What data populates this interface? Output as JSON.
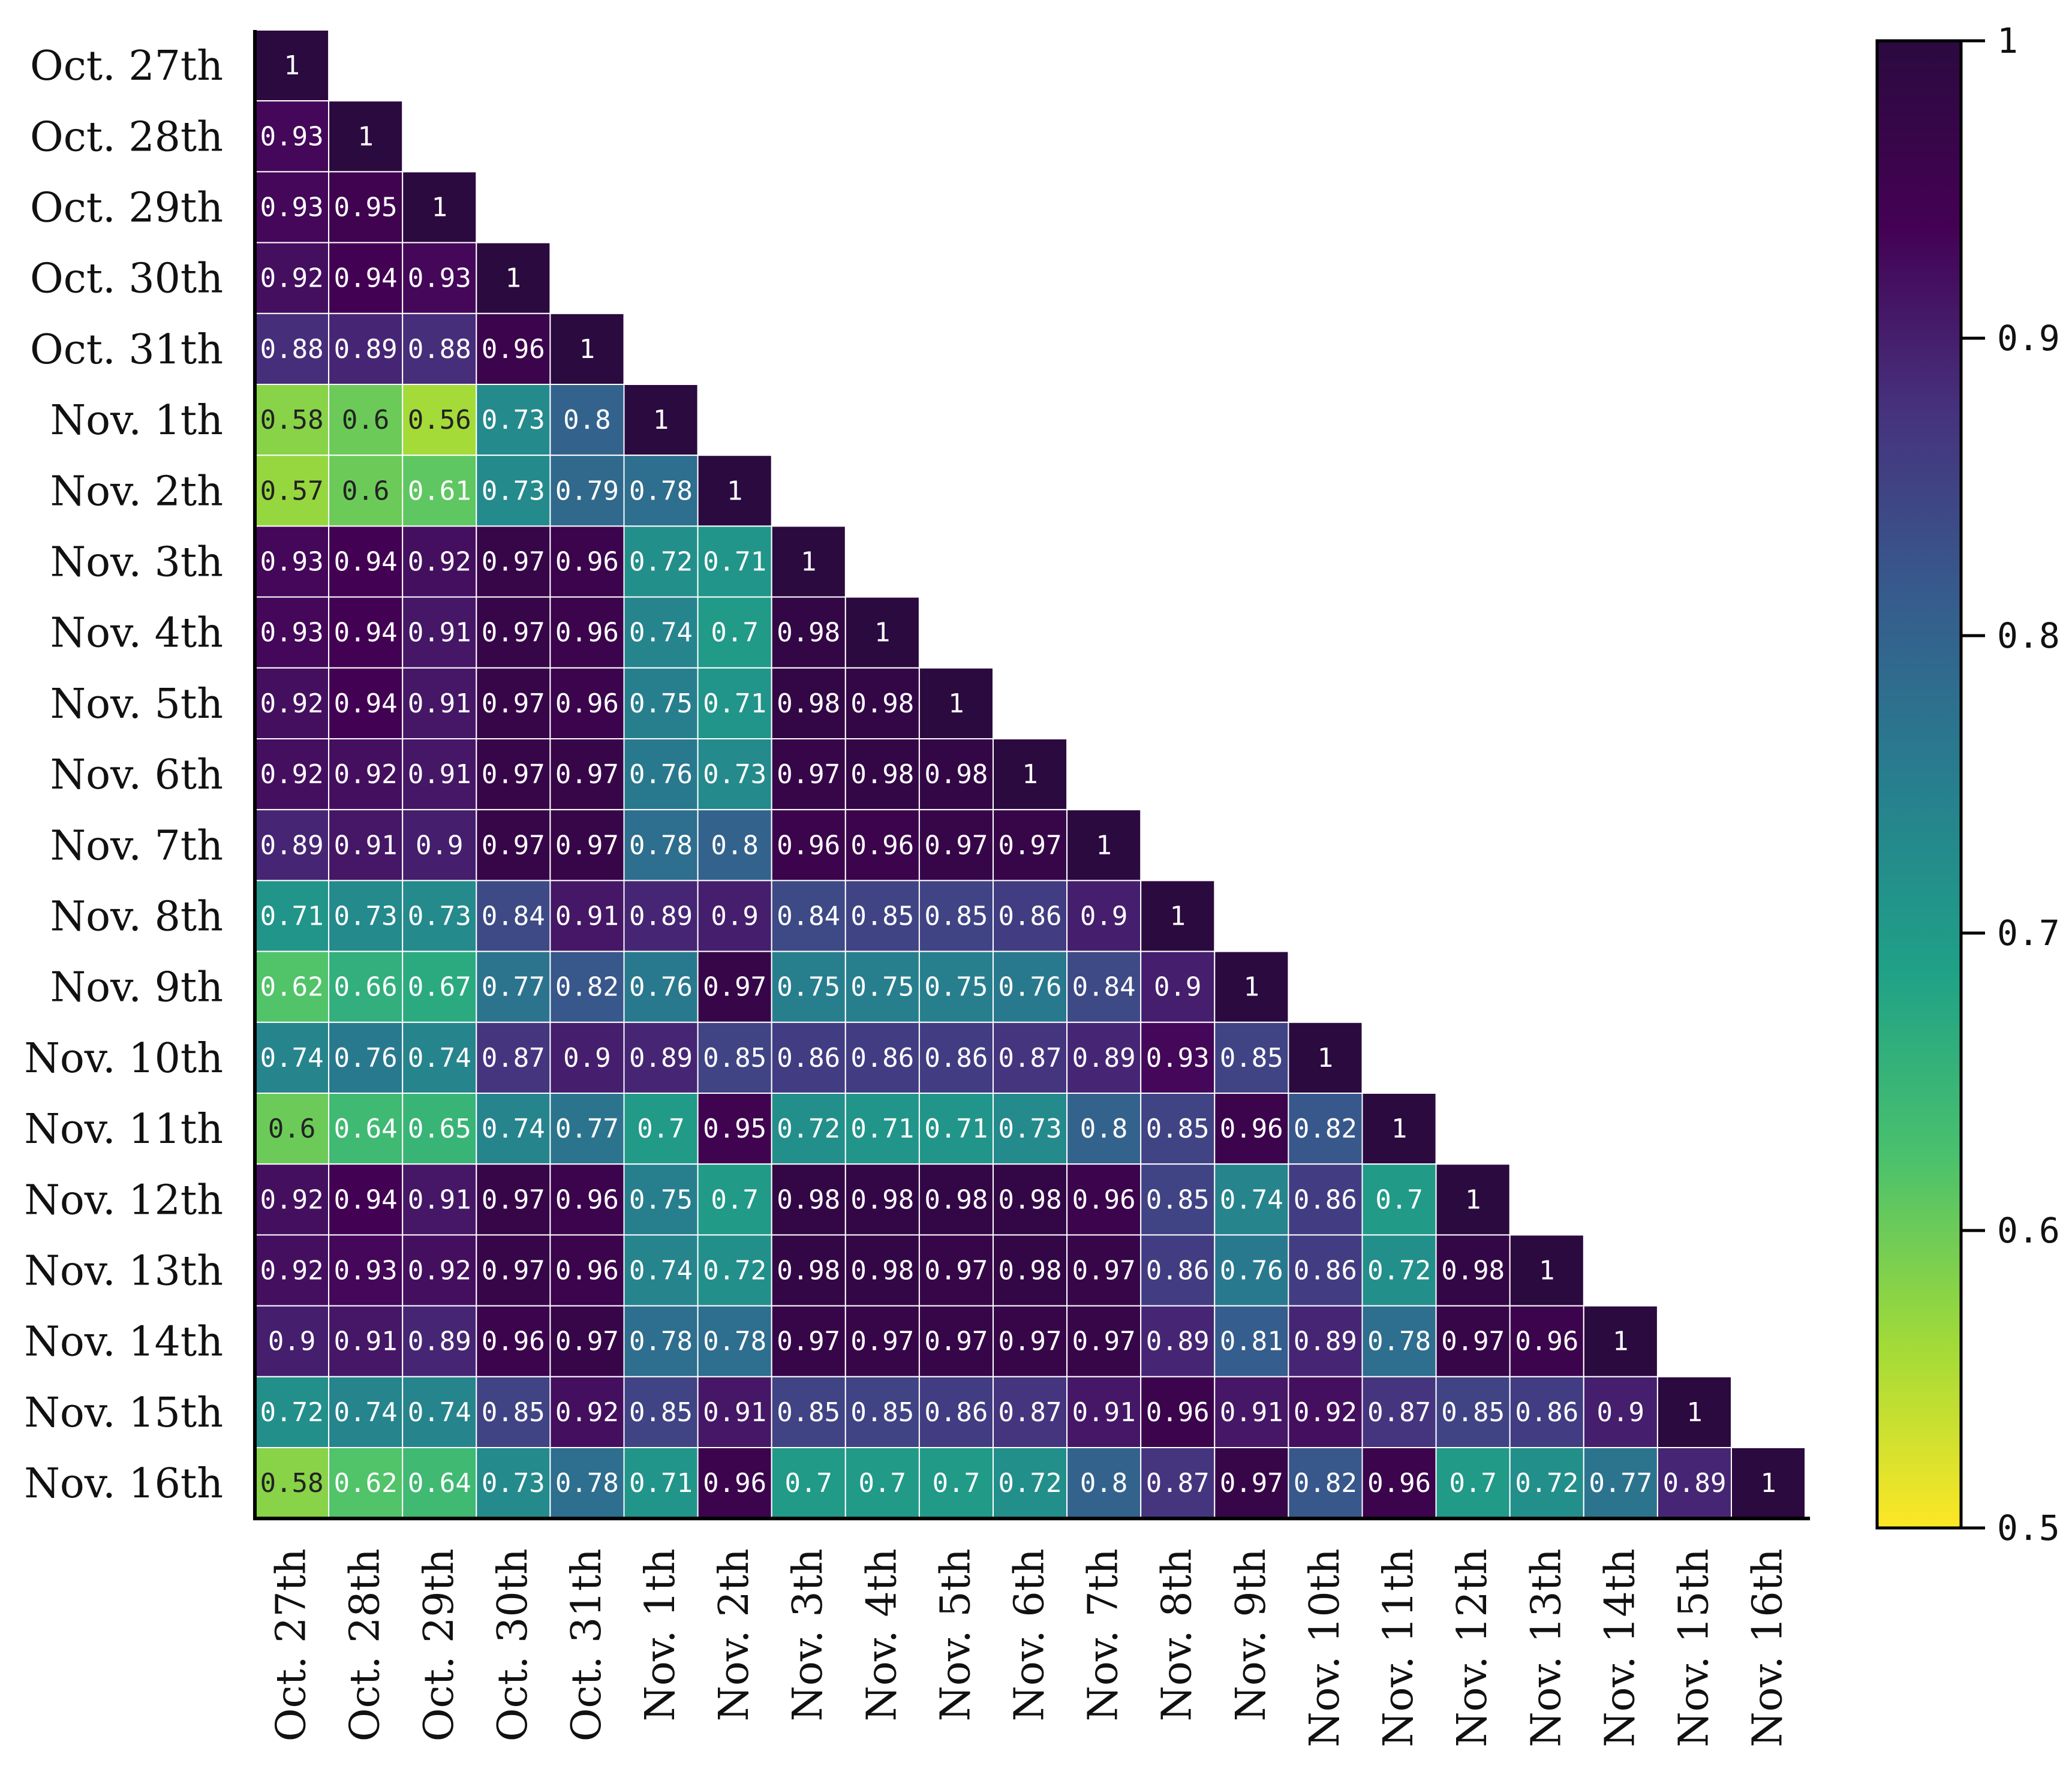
{
  "chart_data": {
    "type": "heatmap",
    "title": "",
    "xlabel": "",
    "ylabel": "",
    "triangle": "lower",
    "colormap": "viridis",
    "categories": [
      "Oct. 27th",
      "Oct. 28th",
      "Oct. 29th",
      "Oct. 30th",
      "Oct. 31th",
      "Nov. 1th",
      "Nov. 2th",
      "Nov. 3th",
      "Nov. 4th",
      "Nov. 5th",
      "Nov. 6th",
      "Nov. 7th",
      "Nov. 8th",
      "Nov. 9th",
      "Nov. 10th",
      "Nov. 11th",
      "Nov. 12th",
      "Nov. 13th",
      "Nov. 14th",
      "Nov. 15th",
      "Nov. 16th"
    ],
    "matrix": [
      [
        1
      ],
      [
        0.93,
        1
      ],
      [
        0.93,
        0.95,
        1
      ],
      [
        0.92,
        0.94,
        0.93,
        1
      ],
      [
        0.88,
        0.89,
        0.88,
        0.96,
        1
      ],
      [
        0.58,
        0.6,
        0.56,
        0.73,
        0.8,
        1
      ],
      [
        0.57,
        0.6,
        0.61,
        0.73,
        0.79,
        0.78,
        1
      ],
      [
        0.93,
        0.94,
        0.92,
        0.97,
        0.96,
        0.72,
        0.71,
        1
      ],
      [
        0.93,
        0.94,
        0.91,
        0.97,
        0.96,
        0.74,
        0.7,
        0.98,
        1
      ],
      [
        0.92,
        0.94,
        0.91,
        0.97,
        0.96,
        0.75,
        0.71,
        0.98,
        0.98,
        1
      ],
      [
        0.92,
        0.92,
        0.91,
        0.97,
        0.97,
        0.76,
        0.73,
        0.97,
        0.98,
        0.98,
        1
      ],
      [
        0.89,
        0.91,
        0.9,
        0.97,
        0.97,
        0.78,
        0.8,
        0.96,
        0.96,
        0.97,
        0.97,
        1
      ],
      [
        0.71,
        0.73,
        0.73,
        0.84,
        0.91,
        0.89,
        0.9,
        0.84,
        0.85,
        0.85,
        0.86,
        0.9,
        1
      ],
      [
        0.62,
        0.66,
        0.67,
        0.77,
        0.82,
        0.76,
        0.97,
        0.75,
        0.75,
        0.75,
        0.76,
        0.84,
        0.9,
        1
      ],
      [
        0.74,
        0.76,
        0.74,
        0.87,
        0.9,
        0.89,
        0.85,
        0.86,
        0.86,
        0.86,
        0.87,
        0.89,
        0.93,
        0.85,
        1
      ],
      [
        0.6,
        0.64,
        0.65,
        0.74,
        0.77,
        0.7,
        0.95,
        0.72,
        0.71,
        0.71,
        0.73,
        0.8,
        0.85,
        0.96,
        0.82,
        1
      ],
      [
        0.92,
        0.94,
        0.91,
        0.97,
        0.96,
        0.75,
        0.7,
        0.98,
        0.98,
        0.98,
        0.98,
        0.96,
        0.85,
        0.74,
        0.86,
        0.7,
        1
      ],
      [
        0.92,
        0.93,
        0.92,
        0.97,
        0.96,
        0.74,
        0.72,
        0.98,
        0.98,
        0.97,
        0.98,
        0.97,
        0.86,
        0.76,
        0.86,
        0.72,
        0.98,
        1
      ],
      [
        0.9,
        0.91,
        0.89,
        0.96,
        0.97,
        0.78,
        0.78,
        0.97,
        0.97,
        0.97,
        0.97,
        0.97,
        0.89,
        0.81,
        0.89,
        0.78,
        0.97,
        0.96,
        1
      ],
      [
        0.72,
        0.74,
        0.74,
        0.85,
        0.92,
        0.85,
        0.91,
        0.85,
        0.85,
        0.86,
        0.87,
        0.91,
        0.96,
        0.91,
        0.92,
        0.87,
        0.85,
        0.86,
        0.9,
        1
      ],
      [
        0.58,
        0.62,
        0.64,
        0.73,
        0.78,
        0.71,
        0.96,
        0.7,
        0.7,
        0.7,
        0.72,
        0.8,
        0.87,
        0.97,
        0.82,
        0.96,
        0.7,
        0.72,
        0.77,
        0.89,
        1
      ]
    ],
    "colorbar": {
      "min": 0.5,
      "max": 1,
      "ticks": [
        0.5,
        0.6,
        0.7,
        0.8,
        0.9,
        1
      ],
      "tick_labels": [
        "0.5",
        "0.6",
        "0.7",
        "0.8",
        "0.9",
        "1"
      ]
    }
  }
}
